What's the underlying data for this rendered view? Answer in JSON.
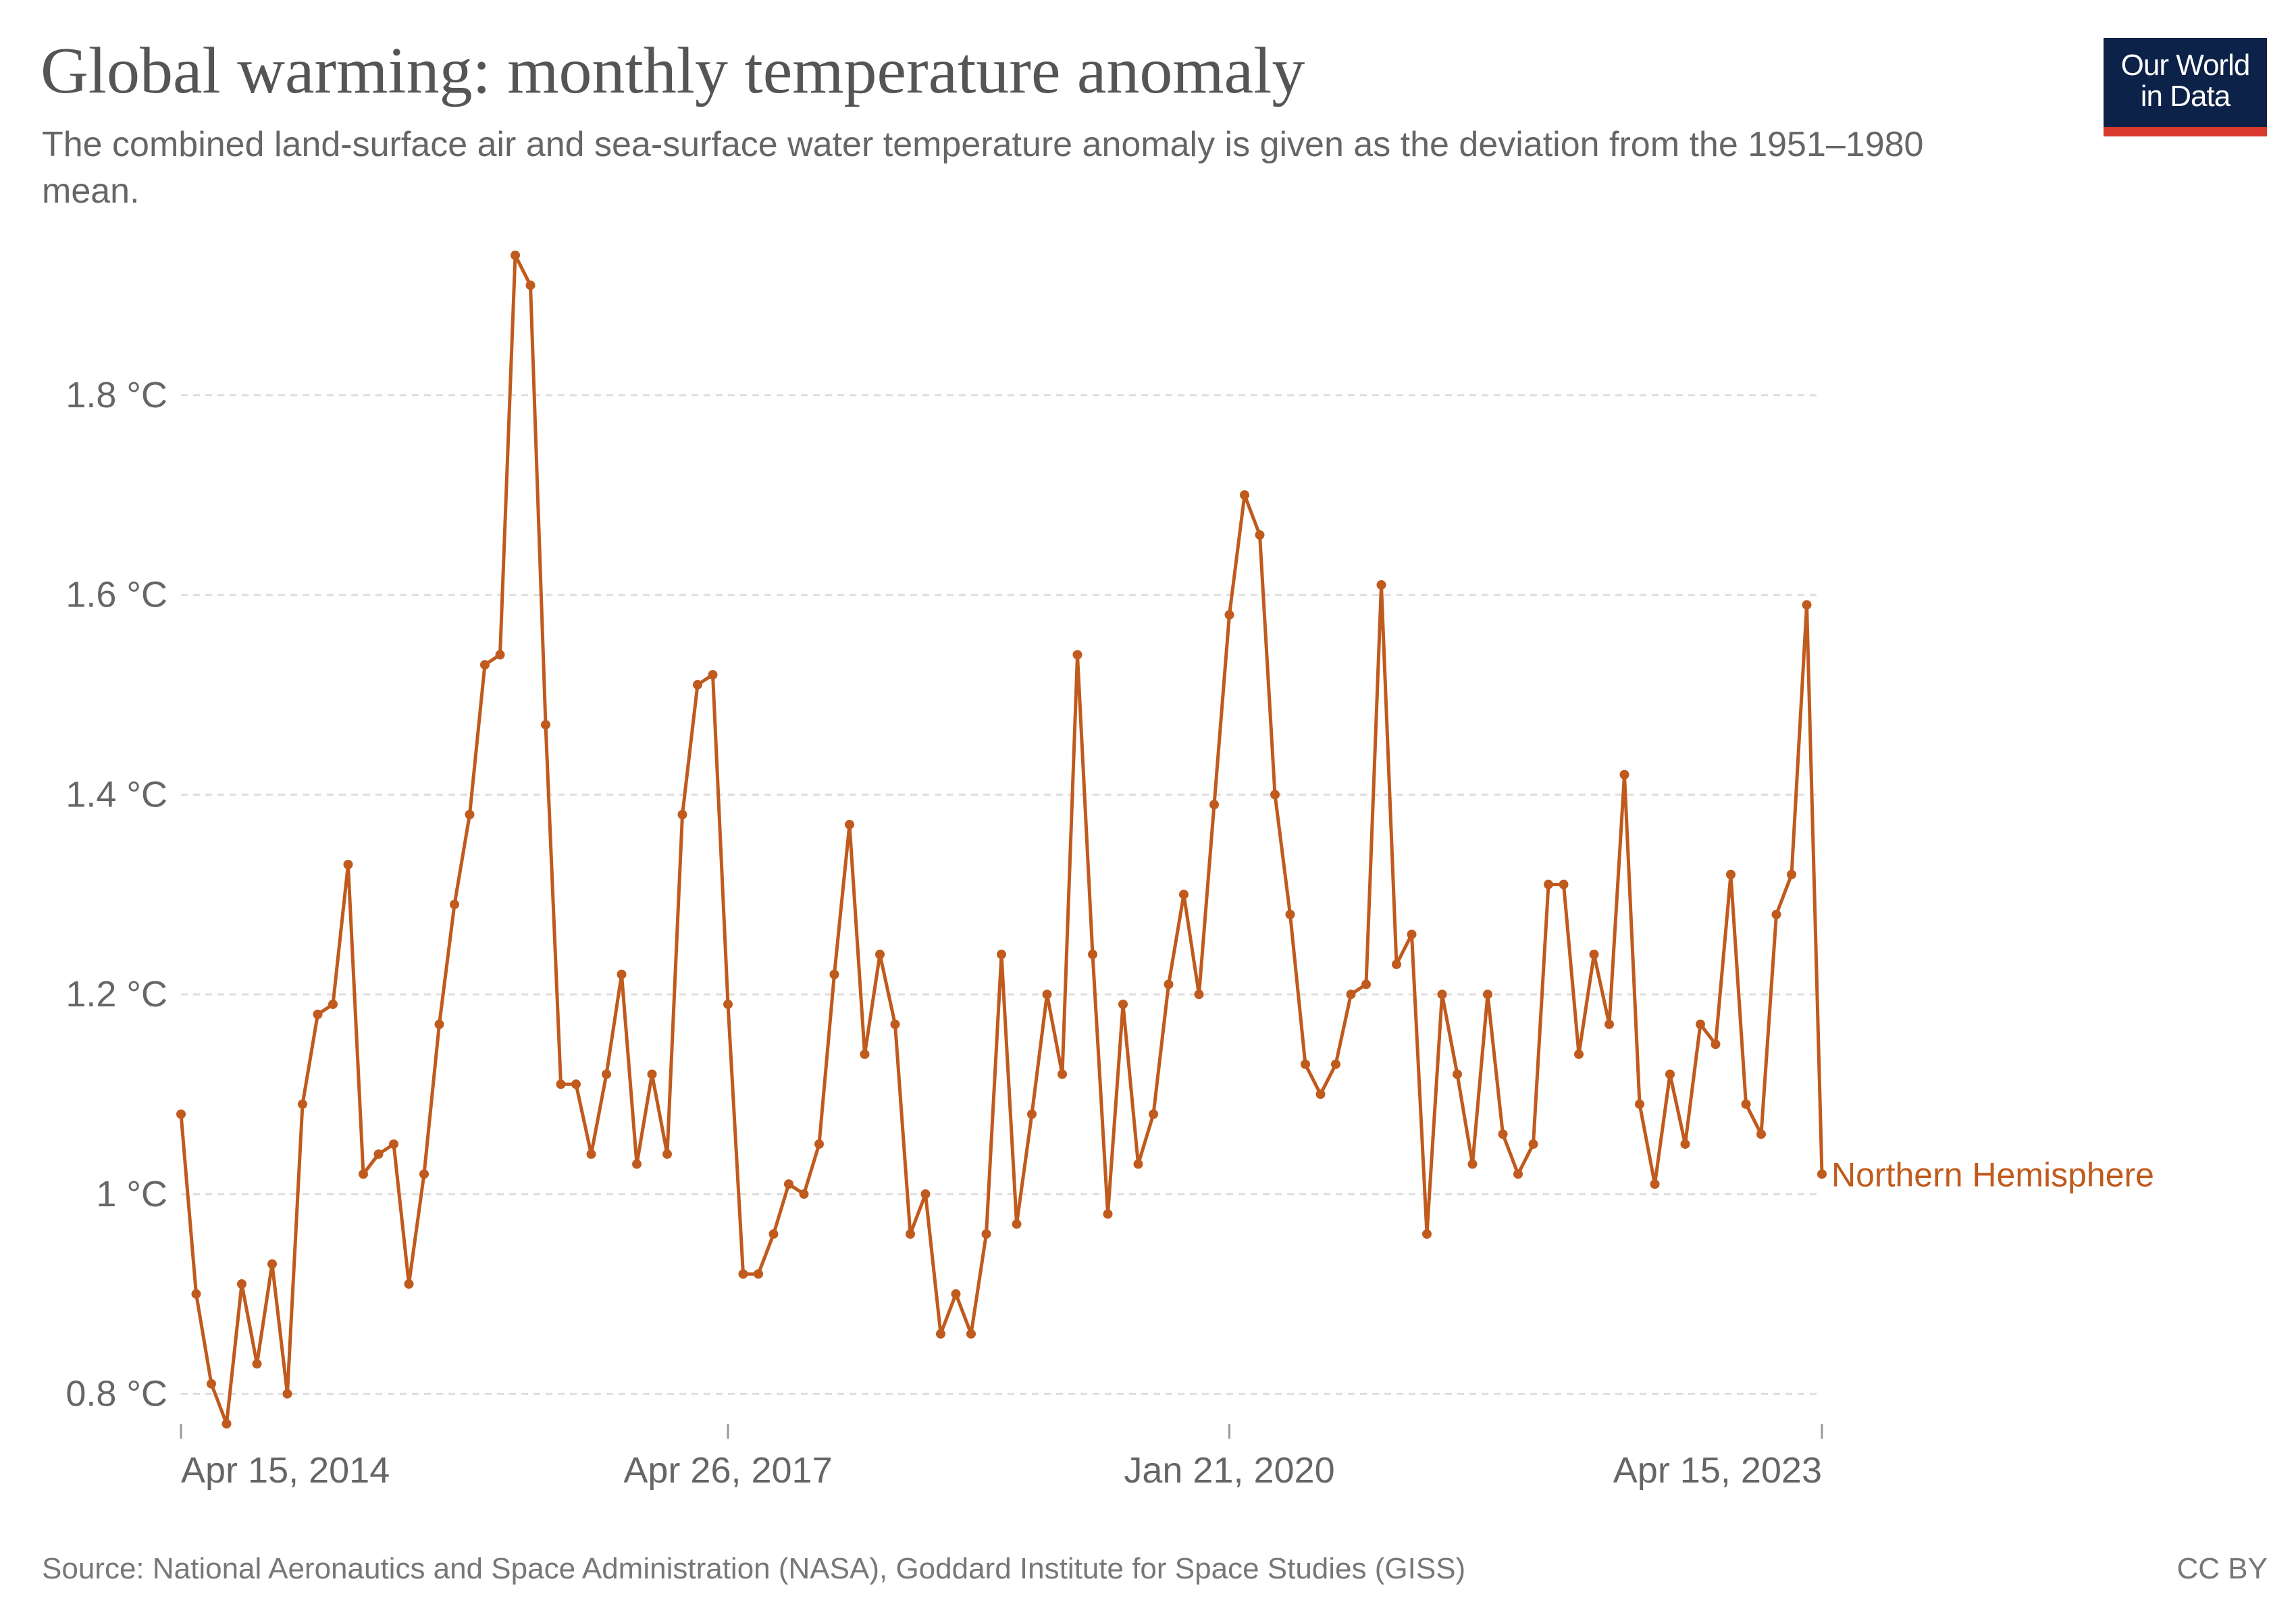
{
  "header": {
    "title": "Global warming: monthly temperature anomaly",
    "subtitle": "The combined land-surface air and sea-surface water temperature anomaly is given as the deviation from the 1951–1980 mean.",
    "logo_line1": "Our World",
    "logo_line2": "in Data"
  },
  "footer": {
    "source": "Source: National Aeronautics and Space Administration (NASA), Goddard Institute for Space Studies (GISS)",
    "license": "CC BY"
  },
  "colors": {
    "series": "#c05a1d",
    "grid": "#dddddd",
    "axis_text": "#666666",
    "logo_bg": "#0c2248",
    "logo_bar": "#d73a2c"
  },
  "chart_data": {
    "type": "line",
    "title": "Global warming: monthly temperature anomaly",
    "xlabel": "",
    "ylabel": "",
    "y_unit": "°C",
    "ylim": [
      0.77,
      1.94
    ],
    "y_ticks": [
      0.8,
      1.0,
      1.2,
      1.4,
      1.6,
      1.8
    ],
    "y_tick_labels": [
      "0.8 °C",
      "1 °C",
      "1.2 °C",
      "1.4 °C",
      "1.6 °C",
      "1.8 °C"
    ],
    "x_tick_labels": [
      "Apr 15, 2014",
      "Apr 26, 2017",
      "Jan 21, 2020",
      "Apr 15, 2023"
    ],
    "x_tick_positions": [
      0,
      36,
      69,
      108
    ],
    "x_range": [
      "Apr 15, 2014",
      "Apr 15, 2023"
    ],
    "grid": "horizontal dashed",
    "legend": "end-of-line label",
    "series": [
      {
        "name": "Northern Hemisphere",
        "color": "#c05a1d",
        "values": [
          1.08,
          0.9,
          0.81,
          0.77,
          0.91,
          0.83,
          0.93,
          0.8,
          1.09,
          1.18,
          1.19,
          1.33,
          1.02,
          1.04,
          1.05,
          0.91,
          1.02,
          1.17,
          1.29,
          1.38,
          1.53,
          1.54,
          1.94,
          1.91,
          1.47,
          1.11,
          1.11,
          1.04,
          1.12,
          1.22,
          1.03,
          1.12,
          1.04,
          1.38,
          1.51,
          1.52,
          1.19,
          0.92,
          0.92,
          0.96,
          1.01,
          1.0,
          1.05,
          1.22,
          1.37,
          1.14,
          1.24,
          1.17,
          0.96,
          1.0,
          0.86,
          0.9,
          0.86,
          0.96,
          1.24,
          0.97,
          1.08,
          1.2,
          1.12,
          1.54,
          1.24,
          0.98,
          1.19,
          1.03,
          1.08,
          1.21,
          1.3,
          1.2,
          1.39,
          1.58,
          1.7,
          1.66,
          1.4,
          1.28,
          1.13,
          1.1,
          1.13,
          1.2,
          1.21,
          1.61,
          1.23,
          1.26,
          0.96,
          1.2,
          1.12,
          1.03,
          1.2,
          1.06,
          1.02,
          1.05,
          1.31,
          1.31,
          1.14,
          1.24,
          1.17,
          1.42,
          1.09,
          1.01,
          1.12,
          1.05,
          1.17,
          1.15,
          1.32,
          1.09,
          1.06,
          1.28,
          1.32,
          1.59,
          1.02
        ]
      }
    ]
  }
}
